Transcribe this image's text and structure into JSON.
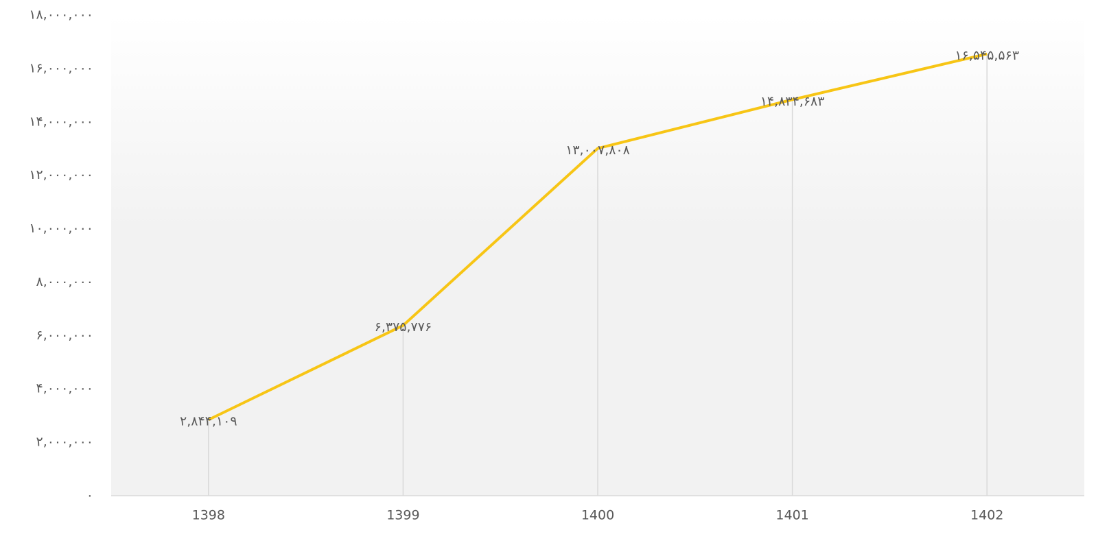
{
  "chart_data": {
    "type": "line",
    "categories": [
      "1398",
      "1399",
      "1400",
      "1401",
      "1402"
    ],
    "series": [
      {
        "name": null,
        "color": "#f7c515",
        "values": [
          2844109,
          6375776,
          13007808,
          14834683,
          16545563
        ],
        "value_labels": [
          "۲,۸۴۴,۱۰۹",
          "۶,۳۷۵,۷۷۶",
          "۱۳,۰۰۷,۸۰۸",
          "۱۴,۸۳۴,۶۸۳",
          "۱۶,۵۴۵,۵۶۳"
        ]
      }
    ],
    "ylim": [
      0,
      18000000
    ],
    "yticks": [
      {
        "value": 0,
        "label": "۰"
      },
      {
        "value": 2000000,
        "label": "۲,۰۰۰,۰۰۰"
      },
      {
        "value": 4000000,
        "label": "۴,۰۰۰,۰۰۰"
      },
      {
        "value": 6000000,
        "label": "۶,۰۰۰,۰۰۰"
      },
      {
        "value": 8000000,
        "label": "۸,۰۰۰,۰۰۰"
      },
      {
        "value": 10000000,
        "label": "۱۰,۰۰۰,۰۰۰"
      },
      {
        "value": 12000000,
        "label": "۱۲,۰۰۰,۰۰۰"
      },
      {
        "value": 14000000,
        "label": "۱۴,۰۰۰,۰۰۰"
      },
      {
        "value": 16000000,
        "label": "۱۶,۰۰۰,۰۰۰"
      },
      {
        "value": 18000000,
        "label": "۱۸,۰۰۰,۰۰۰"
      }
    ],
    "drop_lines": true
  }
}
